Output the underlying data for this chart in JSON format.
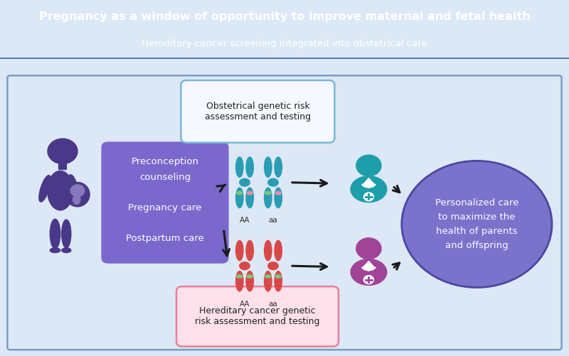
{
  "title": "Pregnancy as a window of opportunity to improve maternal and fetal health",
  "subtitle": "Hereditary cancer screening integrated into obstetrical care",
  "header_bg": "#1e3a6e",
  "header_text_color": "#ffffff",
  "background_color": "#dce8f5",
  "border_color": "#7a9cc5",
  "purple_box_text": "Preconception\ncounseling\n\nPregnancy care\n\nPostpartum care",
  "purple_box_color": "#7b68cc",
  "purple_box_text_color": "#ffffff",
  "obs_box_text": "Obstetrical genetic risk\nassessment and testing",
  "obs_box_color": "#f5f8ff",
  "obs_box_border": "#7ab8d4",
  "obs_box_text_color": "#222222",
  "cancer_box_text": "Hereditary cancer genetic\nrisk assessment and testing",
  "cancer_box_color": "#fce0ea",
  "cancer_box_border": "#e8809a",
  "cancer_box_text_color": "#222222",
  "circle_color": "#7b72cc",
  "circle_border": "#4a48a0",
  "circle_text": "Personalized care\nto maximize the\nhealth of parents\nand offspring",
  "circle_text_color": "#ffffff",
  "chrom_teal_color": "#2a9db5",
  "chrom_red_color": "#d94848",
  "chrom_green_band": "#7bc87b",
  "chrom_pink_band": "#e890a8",
  "doctor_teal_color": "#1e9daa",
  "doctor_purple_color": "#a04498",
  "pregnant_color": "#4a3888",
  "arrow_color": "#1a1a1a",
  "arrow_lw": 2.2
}
